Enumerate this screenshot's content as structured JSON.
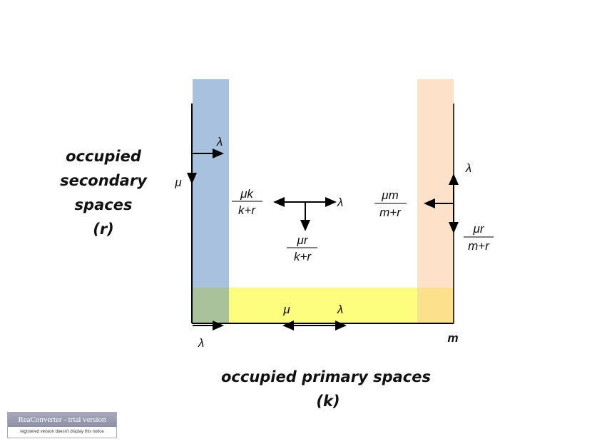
{
  "labels": {
    "secondary": [
      "occupied",
      "secondary",
      "spaces",
      "(r)"
    ],
    "primary": [
      "occupied primary spaces",
      "(k)"
    ],
    "m_axis": "m",
    "lambda": "λ",
    "mu": "μ",
    "center_left": {
      "num": "μk",
      "den": "k+r"
    },
    "center_down": {
      "num": "μr",
      "den": "k+r"
    },
    "right_left": {
      "num": "μm",
      "den": "m+r"
    },
    "right_down": {
      "num": "μr",
      "den": "m+r"
    }
  },
  "colors": {
    "blue": "#a7c1de",
    "orange": "#fde1c9",
    "yellow": "#fdfd7e",
    "green": "#a9c29c",
    "darkorange": "#fde08c"
  },
  "watermark": {
    "title": "ReaConverter - trial version",
    "subtitle": "registered version doesn't display this notice"
  }
}
